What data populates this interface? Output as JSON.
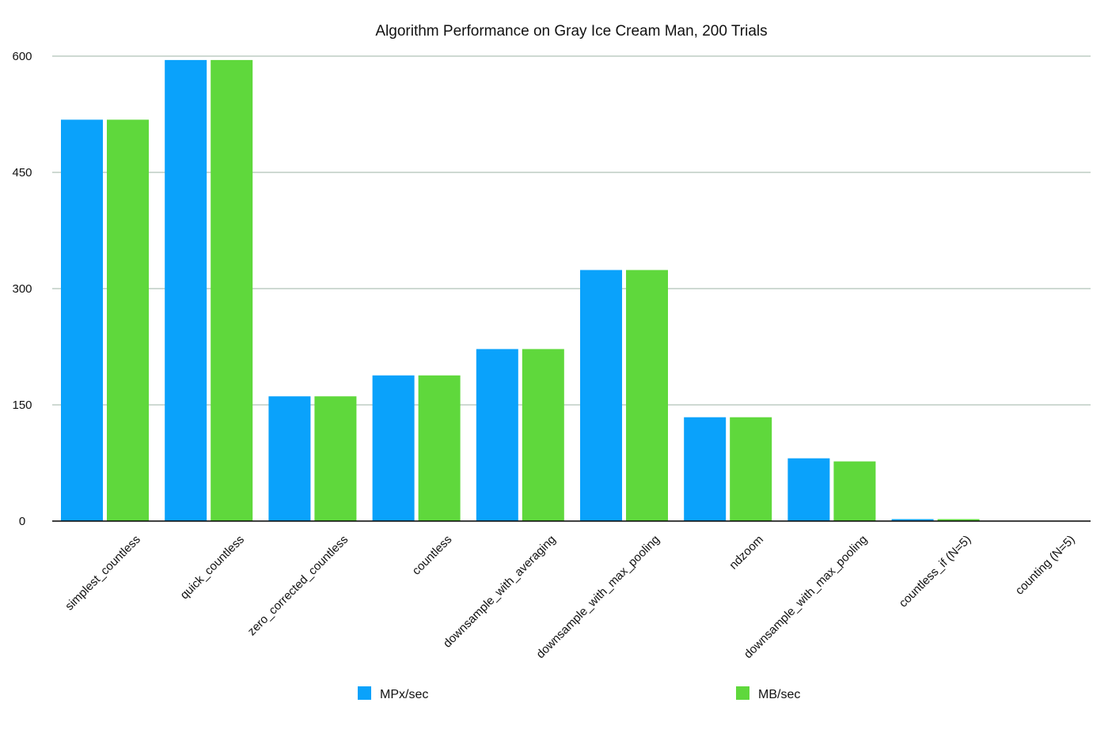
{
  "chart_data": {
    "type": "bar",
    "title": "Algorithm Performance on Gray Ice Cream Man, 200 Trials",
    "xlabel": "",
    "ylabel": "",
    "ylim": [
      0,
      600
    ],
    "yticks": [
      "0",
      "150",
      "300",
      "450",
      "600"
    ],
    "categories": [
      "simplest_countless",
      "quick_countless",
      "zero_corrected_countless",
      "countless",
      "downsample_with_averaging",
      "downsample_with_max_pooling",
      "ndzoom",
      "downsample_with_max_pooling",
      "countless_if (N=5)",
      "counting (N=5)"
    ],
    "series": [
      {
        "name": "MPx/sec",
        "color": "#0aa2fb",
        "values": [
          518,
          595,
          161,
          188,
          222,
          324,
          134,
          81,
          2.5,
          0
        ]
      },
      {
        "name": "MB/sec",
        "color": "#5fd83c",
        "values": [
          518,
          595,
          161,
          188,
          222,
          324,
          134,
          77,
          2.5,
          0
        ]
      }
    ],
    "grid": true,
    "legend_position": "bottom"
  }
}
